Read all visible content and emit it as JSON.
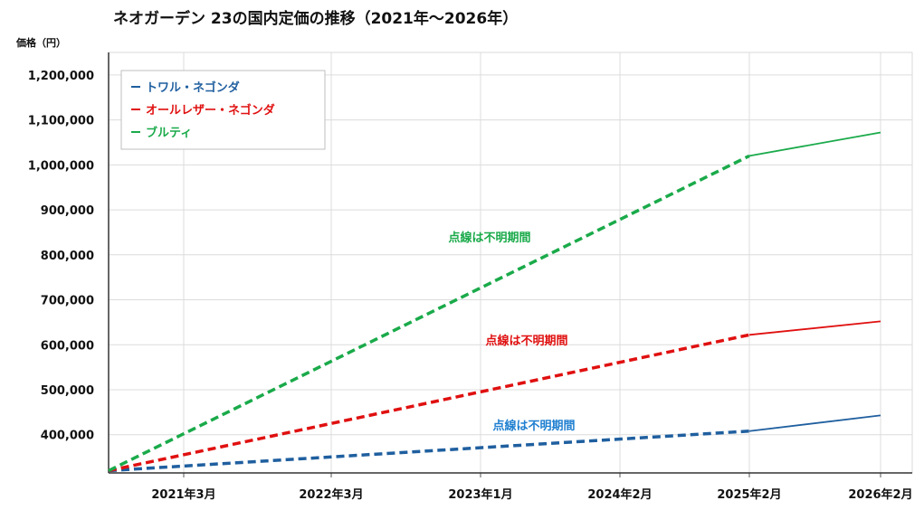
{
  "chart_data": {
    "type": "line",
    "title": "ネオガーデン 23の国内定価の推移（2021年～2026年）",
    "ylabel": "価格（円）",
    "ylim": [
      315000,
      1250000
    ],
    "yticks": [
      400000,
      500000,
      600000,
      700000,
      800000,
      900000,
      1000000,
      1100000,
      1200000
    ],
    "ytick_labels": [
      "400,000",
      "500,000",
      "600,000",
      "700,000",
      "800,000",
      "900,000",
      "1,000,000",
      "1,100,000",
      "1,200,000"
    ],
    "x_categories": [
      "2021年3月",
      "2022年3月",
      "2023年1月",
      "2024年2月",
      "2025年2月",
      "2026年2月"
    ],
    "grid": true,
    "legend_position": "top-left",
    "series": [
      {
        "name": "トワル・ネゴンダ",
        "color": "#1f5f9f",
        "note_color": "#1f7fd0",
        "start": 320000,
        "known": [
          408000,
          443000
        ],
        "note": "点線は不明期間"
      },
      {
        "name": "オールレザー・ネゴンダ",
        "color": "#e01010",
        "note_color": "#e01010",
        "start": 320000,
        "known": [
          622000,
          652000
        ],
        "note": "点線は不明期間"
      },
      {
        "name": "ブルティ",
        "color": "#1aaa4a",
        "note_color": "#1aaa4a",
        "start": 320000,
        "known": [
          1020000,
          1072000
        ],
        "note": "点線は不明期間"
      }
    ]
  }
}
